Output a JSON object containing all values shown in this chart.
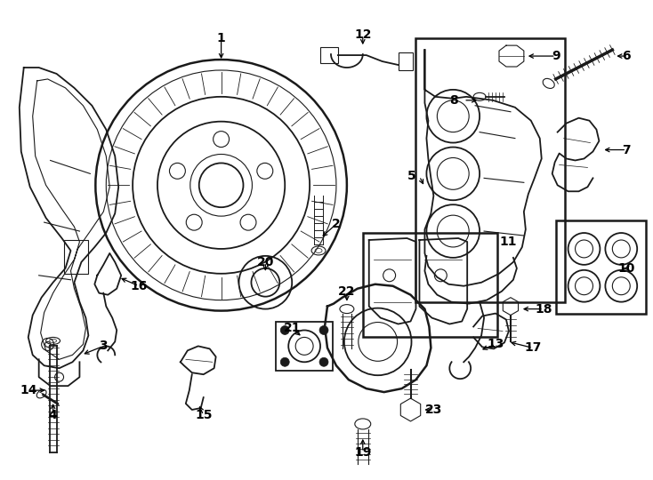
{
  "bg_color": "#ffffff",
  "line_color": "#000000",
  "fig_width": 7.34,
  "fig_height": 5.4,
  "dpi": 100,
  "xlim": [
    0,
    734
  ],
  "ylim": [
    0,
    540
  ]
}
